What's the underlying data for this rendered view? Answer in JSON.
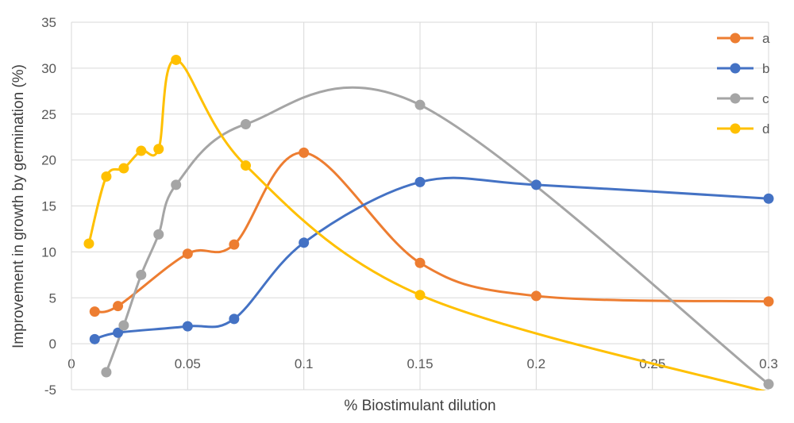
{
  "chart_data": {
    "type": "line",
    "title": "",
    "xlabel": "% Biostimulant dilution",
    "ylabel": "Improvement in growth by germination (%)",
    "xlim": [
      0,
      0.3
    ],
    "ylim": [
      -5,
      35
    ],
    "x_ticks": [
      "0",
      "0.05",
      "0.1",
      "0.15",
      "0.2",
      "0.25",
      "0.3"
    ],
    "y_ticks": [
      "-5",
      "0",
      "5",
      "10",
      "15",
      "20",
      "25",
      "30",
      "35"
    ],
    "grid": true,
    "smooth": true,
    "legend_position": "right",
    "series": [
      {
        "name": "a",
        "color": "#ED7D31",
        "points": [
          [
            0.01,
            3.5
          ],
          [
            0.02,
            4.1
          ],
          [
            0.05,
            9.8
          ],
          [
            0.07,
            10.8
          ],
          [
            0.1,
            20.8
          ],
          [
            0.15,
            8.8
          ],
          [
            0.2,
            5.2
          ],
          [
            0.3,
            4.6
          ]
        ]
      },
      {
        "name": "b",
        "color": "#4472C4",
        "points": [
          [
            0.01,
            0.5
          ],
          [
            0.02,
            1.2
          ],
          [
            0.05,
            1.9
          ],
          [
            0.07,
            2.7
          ],
          [
            0.1,
            11.0
          ],
          [
            0.15,
            17.6
          ],
          [
            0.2,
            17.3
          ],
          [
            0.3,
            15.8
          ]
        ]
      },
      {
        "name": "c",
        "color": "#A5A5A5",
        "points": [
          [
            0.015,
            -3.1
          ],
          [
            0.0225,
            2.0
          ],
          [
            0.03,
            7.5
          ],
          [
            0.0375,
            11.9
          ],
          [
            0.045,
            17.3
          ],
          [
            0.075,
            23.9
          ],
          [
            0.15,
            26.0
          ],
          [
            0.3,
            -4.4
          ]
        ]
      },
      {
        "name": "d",
        "color": "#FFC000",
        "points": [
          [
            0.0075,
            10.9
          ],
          [
            0.015,
            18.2
          ],
          [
            0.0225,
            19.1
          ],
          [
            0.03,
            21.0
          ],
          [
            0.0375,
            21.2
          ],
          [
            0.045,
            30.9
          ],
          [
            0.075,
            19.4
          ],
          [
            0.15,
            5.3
          ],
          [
            0.3,
            -5.3
          ]
        ]
      }
    ]
  }
}
